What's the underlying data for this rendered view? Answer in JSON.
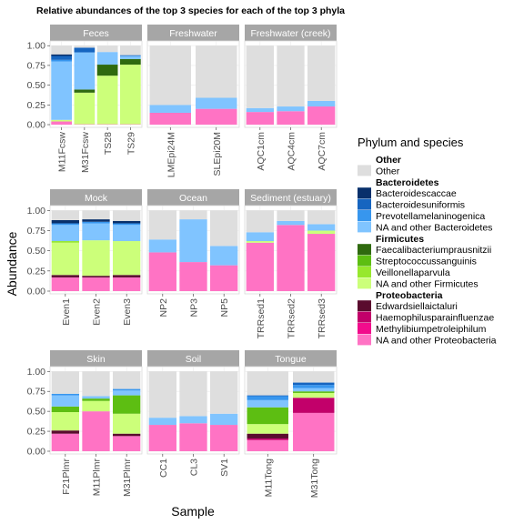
{
  "chart_data": {
    "type": "bar",
    "stacked": true,
    "title": "Relative abundances of the top 3 species for each of the top 3 phyla",
    "xlabel": "Sample",
    "ylabel": "Abundance",
    "ylim": [
      0,
      1.06
    ],
    "yticks": [
      "0.00",
      "0.25",
      "0.50",
      "0.75",
      "1.00"
    ],
    "ytick_values": [
      0,
      0.25,
      0.5,
      0.75,
      1.0
    ],
    "legend": {
      "title": "Phylum and species",
      "placement": "right",
      "groups": [
        {
          "header": "Other",
          "items": [
            {
              "key": "other",
              "label": "Other",
              "color": "#DEDEDE"
            }
          ]
        },
        {
          "header": "Bacteroidetes",
          "items": [
            {
              "key": "bcac",
              "label": "Bacteroidescaccae",
              "color": "#08306B"
            },
            {
              "key": "buni",
              "label": "Bacteroidesuniformis",
              "color": "#1665C0"
            },
            {
              "key": "pmel",
              "label": "Prevotellamelaninogenica",
              "color": "#3796EE"
            },
            {
              "key": "obac",
              "label": "NA and other Bacteroidetes",
              "color": "#80C4FF"
            }
          ]
        },
        {
          "header": "Firmicutes",
          "items": [
            {
              "key": "fpra",
              "label": "Faecalibacteriumprausnitzii",
              "color": "#2F6A0F"
            },
            {
              "key": "ssan",
              "label": "Streptococcussanguinis",
              "color": "#5DBE12"
            },
            {
              "key": "vpar",
              "label": "Veillonellaparvula",
              "color": "#97E82D"
            },
            {
              "key": "ofir",
              "label": "NA and other Firmicutes",
              "color": "#CCFF7A"
            }
          ]
        },
        {
          "header": "Proteobacteria",
          "items": [
            {
              "key": "eict",
              "label": "Edwardsiellaictaluri",
              "color": "#5A0B2E"
            },
            {
              "key": "hpar",
              "label": "Haemophilusparainfluenzae",
              "color": "#C2006A"
            },
            {
              "key": "mpet",
              "label": "Methylibiumpetroleiphilum",
              "color": "#F20C8C"
            },
            {
              "key": "opro",
              "label": "NA and other Proteobacteria",
              "color": "#FF73C4"
            }
          ]
        }
      ]
    },
    "stack_order": [
      "opro",
      "mpet",
      "hpar",
      "eict",
      "ofir",
      "vpar",
      "ssan",
      "fpra",
      "obac",
      "pmel",
      "buni",
      "bcac",
      "other"
    ],
    "facets": [
      {
        "title": "Feces",
        "samples": [
          {
            "name": "M11Fcsw",
            "values": {
              "opro": 0.04,
              "ofir": 0.02,
              "obac": 0.74,
              "pmel": 0.02,
              "buni": 0.05,
              "bcac": 0.02,
              "other": 0.11
            }
          },
          {
            "name": "M31Fcsw",
            "values": {
              "opro": 0.005,
              "ofir": 0.4,
              "fpra": 0.04,
              "obac": 0.47,
              "buni": 0.06,
              "other": 0.025
            }
          },
          {
            "name": "TS28",
            "values": {
              "opro": 0.005,
              "ofir": 0.615,
              "fpra": 0.14,
              "obac": 0.16,
              "other": 0.08
            }
          },
          {
            "name": "TS29",
            "values": {
              "opro": 0.005,
              "ofir": 0.755,
              "fpra": 0.07,
              "obac": 0.04,
              "buni": 0.01,
              "other": 0.12
            }
          }
        ]
      },
      {
        "title": "Freshwater",
        "samples": [
          {
            "name": "LMEpi24M",
            "values": {
              "opro": 0.15,
              "obac": 0.1,
              "other": 0.75
            }
          },
          {
            "name": "SLEpi20M",
            "values": {
              "opro": 0.2,
              "obac": 0.14,
              "other": 0.66
            }
          }
        ]
      },
      {
        "title": "Freshwater (creek)",
        "samples": [
          {
            "name": "AQC1cm",
            "values": {
              "opro": 0.16,
              "obac": 0.05,
              "other": 0.79
            }
          },
          {
            "name": "AQC4cm",
            "values": {
              "opro": 0.17,
              "obac": 0.06,
              "other": 0.77
            }
          },
          {
            "name": "AQC7cm",
            "values": {
              "opro": 0.23,
              "obac": 0.07,
              "other": 0.7
            }
          }
        ]
      },
      {
        "title": "Mock",
        "samples": [
          {
            "name": "Even1",
            "values": {
              "opro": 0.17,
              "eict": 0.03,
              "ofir": 0.4,
              "vpar": 0.02,
              "obac": 0.2,
              "pmel": 0.02,
              "bcac": 0.04,
              "other": 0.12
            }
          },
          {
            "name": "Even2",
            "values": {
              "opro": 0.17,
              "eict": 0.02,
              "ofir": 0.44,
              "obac": 0.21,
              "pmel": 0.02,
              "bcac": 0.03,
              "other": 0.11
            }
          },
          {
            "name": "Even3",
            "values": {
              "opro": 0.17,
              "eict": 0.03,
              "ofir": 0.42,
              "obac": 0.2,
              "pmel": 0.02,
              "bcac": 0.03,
              "other": 0.13
            }
          }
        ]
      },
      {
        "title": "Ocean",
        "samples": [
          {
            "name": "NP2",
            "values": {
              "opro": 0.48,
              "obac": 0.16,
              "other": 0.36
            }
          },
          {
            "name": "NP3",
            "values": {
              "opro": 0.36,
              "obac": 0.53,
              "other": 0.11
            }
          },
          {
            "name": "NP5",
            "values": {
              "opro": 0.32,
              "obac": 0.24,
              "other": 0.44
            }
          }
        ]
      },
      {
        "title": "Sediment (estuary)",
        "samples": [
          {
            "name": "TRRsed1",
            "values": {
              "opro": 0.6,
              "ofir": 0.02,
              "obac": 0.11,
              "other": 0.27
            }
          },
          {
            "name": "TRRsed2",
            "values": {
              "opro": 0.82,
              "obac": 0.05,
              "other": 0.13
            }
          },
          {
            "name": "TRRsed3",
            "values": {
              "opro": 0.71,
              "ofir": 0.04,
              "obac": 0.08,
              "other": 0.17
            }
          }
        ]
      },
      {
        "title": "Skin",
        "samples": [
          {
            "name": "F21Plmr",
            "values": {
              "opro": 0.22,
              "eict": 0.04,
              "ofir": 0.23,
              "ssan": 0.07,
              "obac": 0.14,
              "pmel": 0.02,
              "other": 0.28
            }
          },
          {
            "name": "M11Plmr",
            "values": {
              "opro": 0.5,
              "ofir": 0.13,
              "ssan": 0.03,
              "obac": 0.03,
              "other": 0.31
            }
          },
          {
            "name": "M31Plmr",
            "values": {
              "opro": 0.19,
              "eict": 0.03,
              "ofir": 0.25,
              "ssan": 0.23,
              "obac": 0.06,
              "pmel": 0.02,
              "other": 0.22
            }
          }
        ]
      },
      {
        "title": "Soil",
        "samples": [
          {
            "name": "CC1",
            "values": {
              "opro": 0.33,
              "obac": 0.09,
              "other": 0.58
            }
          },
          {
            "name": "CL3",
            "values": {
              "opro": 0.35,
              "obac": 0.09,
              "other": 0.56
            }
          },
          {
            "name": "SV1",
            "values": {
              "opro": 0.33,
              "obac": 0.14,
              "other": 0.53
            }
          }
        ]
      },
      {
        "title": "Tongue",
        "samples": [
          {
            "name": "M11Tong",
            "values": {
              "opro": 0.14,
              "hpar": 0.02,
              "eict": 0.06,
              "ofir": 0.12,
              "ssan": 0.21,
              "obac": 0.09,
              "pmel": 0.05,
              "buni": 0.01,
              "other": 0.3
            }
          },
          {
            "name": "M31Tong",
            "values": {
              "opro": 0.48,
              "hpar": 0.19,
              "ofir": 0.06,
              "ssan": 0.02,
              "obac": 0.04,
              "pmel": 0.04,
              "buni": 0.03,
              "other": 0.14
            }
          }
        ]
      }
    ]
  }
}
